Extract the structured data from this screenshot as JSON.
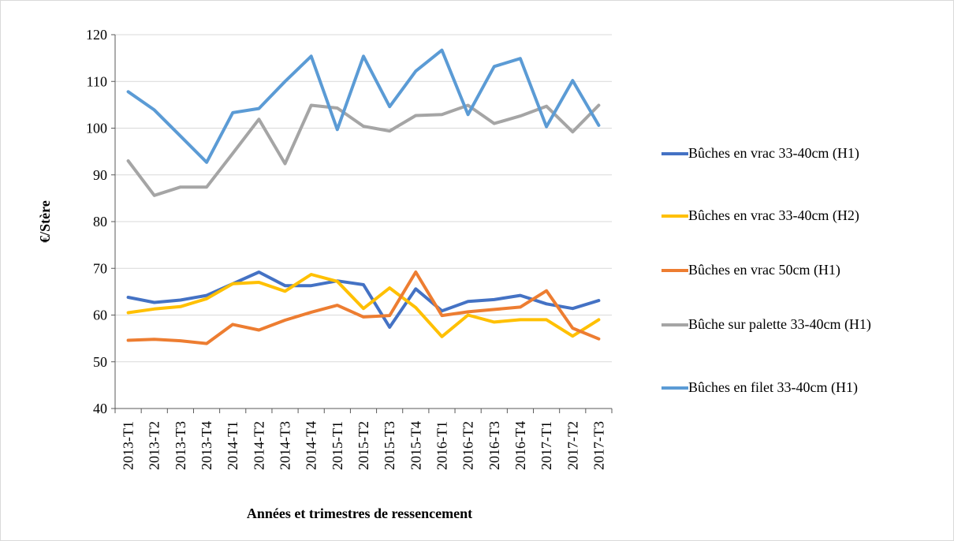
{
  "chart_data": {
    "type": "line",
    "x_label": "Années et trimestres de ressencement",
    "y_label": "€/Stère",
    "categories": [
      "2013-T1",
      "2013-T2",
      "2013-T3",
      "2013-T4",
      "2014-T1",
      "2014-T2",
      "2014-T3",
      "2014-T4",
      "2015-T1",
      "2015-T2",
      "2015-T3",
      "2015-T4",
      "2016-T1",
      "2016-T2",
      "2016-T3",
      "2016-T4",
      "2017-T1",
      "2017-T2",
      "2017-T3"
    ],
    "series": [
      {
        "name": "Bûches en vrac 33-40cm (H1)",
        "color": "#4472c4",
        "values": [
          63.8,
          62.7,
          63.2,
          64.2,
          66.7,
          69.2,
          66.3,
          66.3,
          67.3,
          66.5,
          57.4,
          65.6,
          60.9,
          62.9,
          63.3,
          64.2,
          62.4,
          61.4,
          63.1
        ]
      },
      {
        "name": "Bûches en vrac 33-40cm (H2)",
        "color": "#ffc000",
        "values": [
          60.5,
          61.3,
          61.8,
          63.5,
          66.7,
          67.0,
          65.1,
          68.7,
          67.2,
          61.4,
          65.8,
          61.6,
          55.4,
          60.0,
          58.5,
          59.0,
          59.0,
          55.5,
          59.0
        ]
      },
      {
        "name": "Bûches en vrac 50cm (H1)",
        "color": "#ed7d31",
        "values": [
          54.6,
          54.8,
          54.5,
          53.9,
          58.0,
          56.8,
          58.9,
          60.6,
          62.1,
          59.6,
          59.9,
          69.2,
          59.9,
          60.7,
          61.2,
          61.7,
          65.2,
          57.2,
          54.9
        ]
      },
      {
        "name": "Bûche sur palette 33-40cm (H1)",
        "color": "#a5a5a5",
        "values": [
          93.0,
          85.6,
          87.4,
          87.4,
          94.6,
          101.9,
          92.4,
          104.9,
          104.3,
          100.4,
          99.4,
          102.7,
          102.9,
          104.9,
          101.0,
          102.6,
          104.7,
          99.2,
          104.9
        ]
      },
      {
        "name": "Bûches en filet 33-40cm (H1)",
        "color": "#5b9bd5",
        "values": [
          107.8,
          103.9,
          98.3,
          92.7,
          103.3,
          104.2,
          110.0,
          115.4,
          99.7,
          115.4,
          104.6,
          112.2,
          116.7,
          102.9,
          113.2,
          114.9,
          100.3,
          110.2,
          100.6
        ]
      }
    ],
    "ylim": [
      40,
      120
    ],
    "yticks": [
      40,
      50,
      60,
      70,
      80,
      90,
      100,
      110,
      120
    ],
    "grid": true,
    "legend": "right"
  }
}
